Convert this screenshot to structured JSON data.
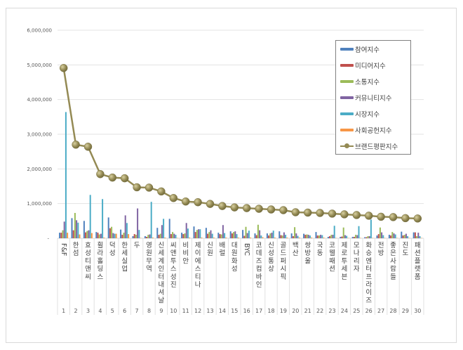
{
  "chart_data": {
    "type": "bar+line",
    "title": "",
    "xlabel": "",
    "ylabel": "",
    "ylim": [
      0,
      6000000
    ],
    "yticks": [
      "-",
      "1,000,000",
      "2,000,000",
      "3,000,000",
      "4,000,000",
      "5,000,000",
      "6,000,000"
    ],
    "grid": true,
    "legend_position": "upper right (inside plot)",
    "categories": [
      "F&F",
      "한섬",
      "효성티앤씨",
      "휠라홀딩스",
      "덕성",
      "한세실업",
      "두",
      "영원무역",
      "신세계인터내셔날",
      "씨앤투스성진",
      "비비안",
      "제이에스티나",
      "신원",
      "배럴",
      "대원화성",
      "BYC",
      "코데즈컴바인",
      "신성통상",
      "골드퍼시픽",
      "백산",
      "쌍방울",
      "국동",
      "코웰패션",
      "제로투세븐",
      "모나리자",
      "화승엔터프라이즈",
      "전방",
      "좋은사람들",
      "진도",
      "패션플랫폼"
    ],
    "category_numbers": [
      "1",
      "2",
      "3",
      "4",
      "5",
      "6",
      "7",
      "8",
      "9",
      "10",
      "11",
      "12",
      "13",
      "14",
      "15",
      "16",
      "17",
      "18",
      "19",
      "20",
      "21",
      "22",
      "23",
      "24",
      "25",
      "26",
      "27",
      "28",
      "29",
      "30"
    ],
    "series": [
      {
        "name": "참여지수",
        "type": "bar",
        "color": "#4f81bd",
        "values": [
          160000,
          580000,
          500000,
          180000,
          600000,
          250000,
          60000,
          60000,
          300000,
          560000,
          160000,
          340000,
          300000,
          160000,
          200000,
          240000,
          140000,
          140000,
          200000,
          140000,
          130000,
          180000,
          40000,
          40000,
          40000,
          30000,
          80000,
          100000,
          190000,
          170000
        ]
      },
      {
        "name": "미디어지수",
        "type": "bar",
        "color": "#c0504d",
        "values": [
          160000,
          230000,
          170000,
          160000,
          290000,
          100000,
          120000,
          40000,
          100000,
          120000,
          120000,
          180000,
          130000,
          120000,
          140000,
          70000,
          90000,
          80000,
          90000,
          60000,
          100000,
          80000,
          60000,
          50000,
          40000,
          30000,
          120000,
          80000,
          80000,
          170000
        ]
      },
      {
        "name": "소통지수",
        "type": "bar",
        "color": "#9bbb59",
        "values": [
          230000,
          730000,
          210000,
          110000,
          330000,
          160000,
          100000,
          100000,
          130000,
          180000,
          140000,
          240000,
          180000,
          110000,
          180000,
          330000,
          390000,
          140000,
          80000,
          320000,
          110000,
          80000,
          100000,
          310000,
          100000,
          60000,
          310000,
          180000,
          100000,
          60000
        ]
      },
      {
        "name": "커뮤니티지수",
        "type": "bar",
        "color": "#8064a2",
        "values": [
          480000,
          520000,
          230000,
          130000,
          150000,
          660000,
          860000,
          110000,
          380000,
          130000,
          440000,
          260000,
          230000,
          380000,
          200000,
          150000,
          230000,
          160000,
          170000,
          140000,
          100000,
          100000,
          100000,
          90000,
          90000,
          60000,
          170000,
          140000,
          130000,
          160000
        ]
      },
      {
        "name": "시장지수",
        "type": "bar",
        "color": "#4bacc6",
        "values": [
          3640000,
          450000,
          1250000,
          1130000,
          130000,
          440000,
          240000,
          1050000,
          560000,
          100000,
          280000,
          260000,
          130000,
          150000,
          120000,
          220000,
          80000,
          220000,
          100000,
          70000,
          80000,
          90000,
          360000,
          70000,
          350000,
          540000,
          90000,
          110000,
          60000,
          60000
        ]
      },
      {
        "name": "사회공헌지수",
        "type": "bar",
        "color": "#f79646",
        "values": [
          160000,
          110000,
          150000,
          20000,
          130000,
          120000,
          10000,
          20000,
          20000,
          10000,
          20000,
          20000,
          20000,
          20000,
          20000,
          20000,
          30000,
          20000,
          20000,
          20000,
          20000,
          20000,
          10000,
          10000,
          10000,
          10000,
          10000,
          10000,
          10000,
          10000
        ]
      },
      {
        "name": "브랜드평판지수",
        "type": "line",
        "color": "#948a54",
        "values": [
          4910000,
          2700000,
          2640000,
          1850000,
          1750000,
          1730000,
          1470000,
          1460000,
          1350000,
          1160000,
          1060000,
          1040000,
          990000,
          930000,
          890000,
          870000,
          850000,
          830000,
          810000,
          750000,
          740000,
          730000,
          710000,
          690000,
          670000,
          650000,
          620000,
          610000,
          580000,
          570000
        ]
      }
    ]
  }
}
